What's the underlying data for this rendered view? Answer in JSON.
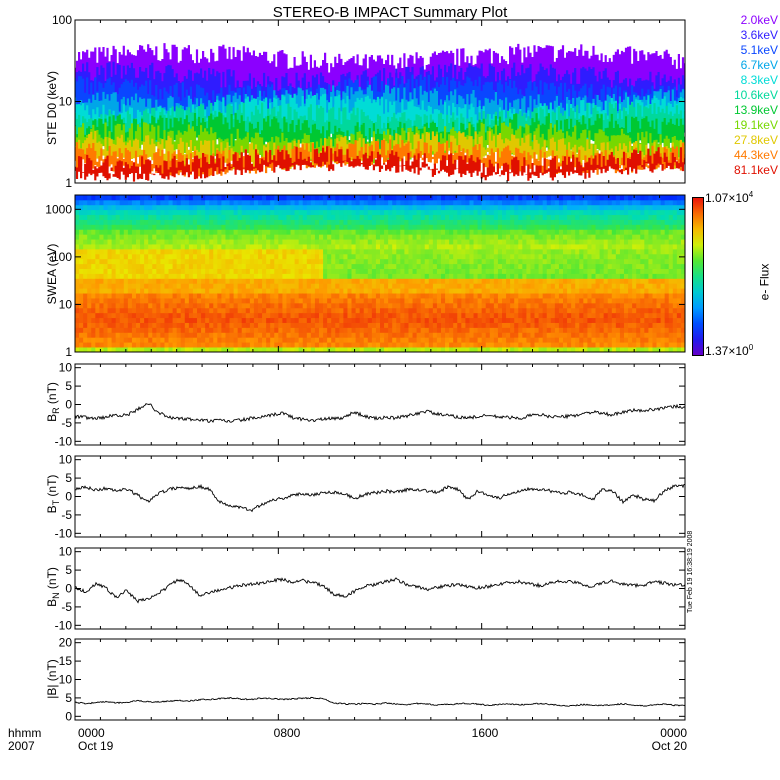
{
  "chart_data": {
    "title": "STEREO-B IMPACT Summary Plot",
    "x_tick_labels": [
      "0000",
      "0800",
      "1600",
      "0000"
    ],
    "x_date_labels": [
      "Oct 19",
      "",
      "",
      "Oct 20"
    ],
    "x_label_left": [
      "hhmm",
      "2007"
    ],
    "panels": [
      {
        "type": "line",
        "ylabel": "STE D0 (keV)",
        "yscale": "log",
        "ylim": [
          1,
          100
        ],
        "yticks": [
          "1",
          "10",
          "100"
        ],
        "energy_channels": [
          {
            "label": "2.0keV",
            "color": "#8b00ff"
          },
          {
            "label": "3.6keV",
            "color": "#2f1cff"
          },
          {
            "label": "5.1keV",
            "color": "#0a46ff"
          },
          {
            "label": "6.7keV",
            "color": "#00a6e8"
          },
          {
            "label": "8.3keV",
            "color": "#00dcd6"
          },
          {
            "label": "10.6keV",
            "color": "#00d89c"
          },
          {
            "label": "13.9keV",
            "color": "#00c832"
          },
          {
            "label": "19.1keV",
            "color": "#77d800"
          },
          {
            "label": "27.8keV",
            "color": "#e0c800"
          },
          {
            "label": "44.3keV",
            "color": "#ff7a00"
          },
          {
            "label": "81.1keV",
            "color": "#e01000"
          }
        ]
      },
      {
        "type": "heatmap",
        "ylabel": "SWEA (eV)",
        "yscale": "log",
        "ylim": [
          1,
          2000
        ],
        "yticks": [
          "1",
          "10",
          "100",
          "1000"
        ],
        "colorbar_title": "e- Flux",
        "colorbar_max": "1.07×10",
        "colorbar_max_exp": "4",
        "colorbar_min": "1.37×10",
        "colorbar_min_exp": "0"
      },
      {
        "type": "line",
        "ylabel_main": "B",
        "ylabel_sub": "R",
        "ylabel_unit": " (nT)",
        "ylim": [
          -11,
          11
        ],
        "yticks": [
          "-10",
          "-5",
          "0",
          "5",
          "10"
        ],
        "values": [
          -3.2,
          -3.5,
          -3.8,
          -3.4,
          -2.8,
          -3.0,
          -1.5,
          0.5,
          -2.0,
          -3.5,
          -3.8,
          -4.0,
          -4.2,
          -4.5,
          -4.3,
          -4.6,
          -4.2,
          -3.8,
          -3.5,
          -3.0,
          -2.2,
          -3.5,
          -4.0,
          -4.3,
          -4.0,
          -3.8,
          -3.6,
          -2.0,
          -3.2,
          -3.8,
          -3.5,
          -3.7,
          -3.2,
          -2.5,
          -1.8,
          -2.6,
          -3.0,
          -3.4,
          -3.6,
          -3.3,
          -3.0,
          -3.4,
          -3.5,
          -3.8,
          -3.0,
          -2.8,
          -3.2,
          -3.4,
          -3.1,
          -2.6,
          -2.0,
          -2.5,
          -2.8,
          -2.2,
          -1.5,
          -1.8,
          -1.2,
          -1.0,
          -0.5,
          -0.8
        ]
      },
      {
        "type": "line",
        "ylabel_main": "B",
        "ylabel_sub": "T",
        "ylabel_unit": " (nT)",
        "ylim": [
          -11,
          11
        ],
        "yticks": [
          "-10",
          "-5",
          "0",
          "5",
          "10"
        ],
        "values": [
          2.0,
          2.5,
          1.8,
          2.2,
          1.5,
          2.0,
          0.5,
          -1.5,
          0.8,
          1.8,
          2.5,
          2.2,
          2.8,
          2.0,
          -1.5,
          -2.5,
          -3.0,
          -3.8,
          -2.2,
          -1.0,
          -0.5,
          0.2,
          0.8,
          0.5,
          1.0,
          1.2,
          0.8,
          -0.5,
          0.5,
          1.0,
          1.5,
          1.2,
          1.8,
          2.0,
          1.6,
          1.0,
          2.5,
          2.0,
          -0.8,
          1.5,
          0.5,
          -0.5,
          0.8,
          1.5,
          2.2,
          2.0,
          1.5,
          0.8,
          1.2,
          0.6,
          -1.0,
          1.8,
          1.5,
          -1.5,
          0.5,
          -0.8,
          -1.2,
          1.5,
          2.8,
          3.0
        ]
      },
      {
        "type": "line",
        "ylabel_main": "B",
        "ylabel_sub": "N",
        "ylabel_unit": " (nT)",
        "ylim": [
          -11,
          11
        ],
        "yticks": [
          "-10",
          "-5",
          "0",
          "5",
          "10"
        ],
        "values": [
          0.5,
          -1.0,
          1.2,
          0.2,
          -2.5,
          -0.5,
          -3.5,
          -2.8,
          -1.5,
          0.5,
          2.5,
          1.0,
          -1.8,
          -1.0,
          -0.5,
          0.2,
          0.8,
          1.2,
          1.5,
          2.0,
          2.5,
          1.8,
          2.2,
          1.5,
          0.8,
          -1.5,
          -2.2,
          -0.8,
          0.5,
          1.0,
          1.8,
          2.5,
          1.2,
          0.5,
          -0.2,
          0.3,
          0.8,
          1.0,
          0.5,
          0.2,
          0.6,
          1.2,
          1.5,
          1.8,
          1.2,
          0.8,
          1.5,
          2.0,
          1.8,
          1.2,
          0.5,
          1.5,
          2.0,
          1.2,
          0.8,
          1.0,
          1.8,
          1.5,
          1.0,
          0.8
        ]
      },
      {
        "type": "line",
        "ylabel": "|B| (nT)",
        "ylim": [
          -1,
          21
        ],
        "yticks": [
          "0",
          "5",
          "10",
          "15",
          "20"
        ],
        "values": [
          3.8,
          3.5,
          3.7,
          4.0,
          3.6,
          3.8,
          4.2,
          4.0,
          3.9,
          4.1,
          4.3,
          4.2,
          4.5,
          4.6,
          4.8,
          5.0,
          4.7,
          4.6,
          4.9,
          4.8,
          4.6,
          4.7,
          4.9,
          5.0,
          4.8,
          3.6,
          3.4,
          3.3,
          3.5,
          3.3,
          3.6,
          3.4,
          3.2,
          3.5,
          3.3,
          3.1,
          3.2,
          3.4,
          3.5,
          3.3,
          3.0,
          3.2,
          3.4,
          3.1,
          3.3,
          3.5,
          3.2,
          3.0,
          2.8,
          3.2,
          3.1,
          2.9,
          3.2,
          3.4,
          3.0,
          2.8,
          3.1,
          3.3,
          3.0,
          2.9
        ]
      }
    ]
  },
  "stamp": "Tue Feb 19 16:38:19 2008"
}
